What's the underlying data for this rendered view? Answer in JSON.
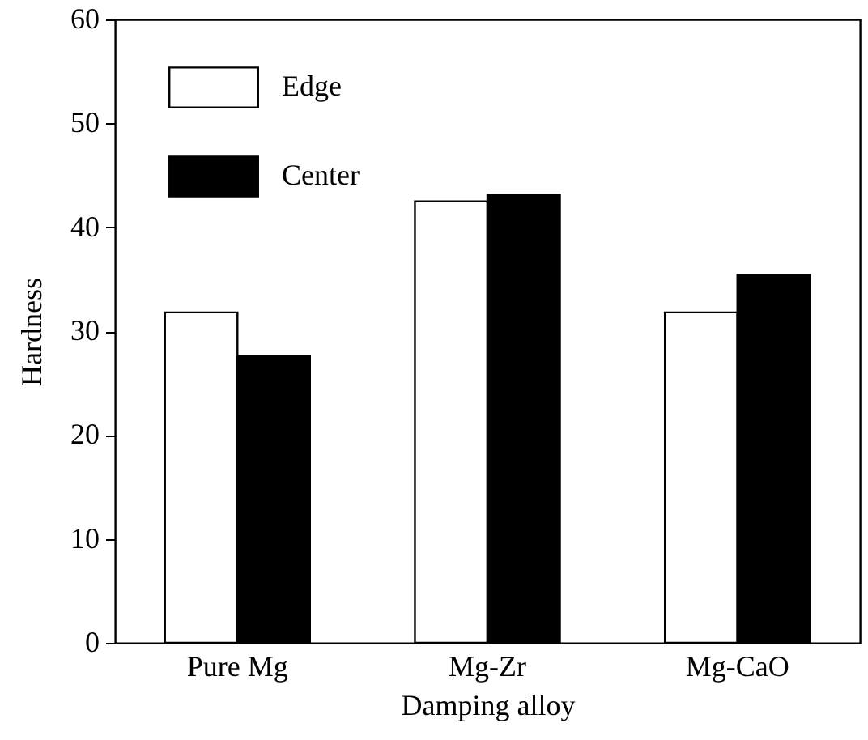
{
  "chart_data": {
    "type": "bar",
    "xlabel": "Damping alloy",
    "ylabel": "Hardness",
    "categories": [
      "Pure Mg",
      "Mg-Zr",
      "Mg-CaO"
    ],
    "series": [
      {
        "name": "Edge",
        "color": "#ffffff",
        "values": [
          31.8,
          42.5,
          31.8
        ]
      },
      {
        "name": "Center",
        "color": "#000000",
        "values": [
          27.6,
          43.1,
          35.4
        ]
      }
    ],
    "ylim": [
      0,
      60
    ],
    "yticks": [
      0,
      10,
      20,
      30,
      40,
      50,
      60
    ],
    "grid": false,
    "legend": "top left"
  }
}
